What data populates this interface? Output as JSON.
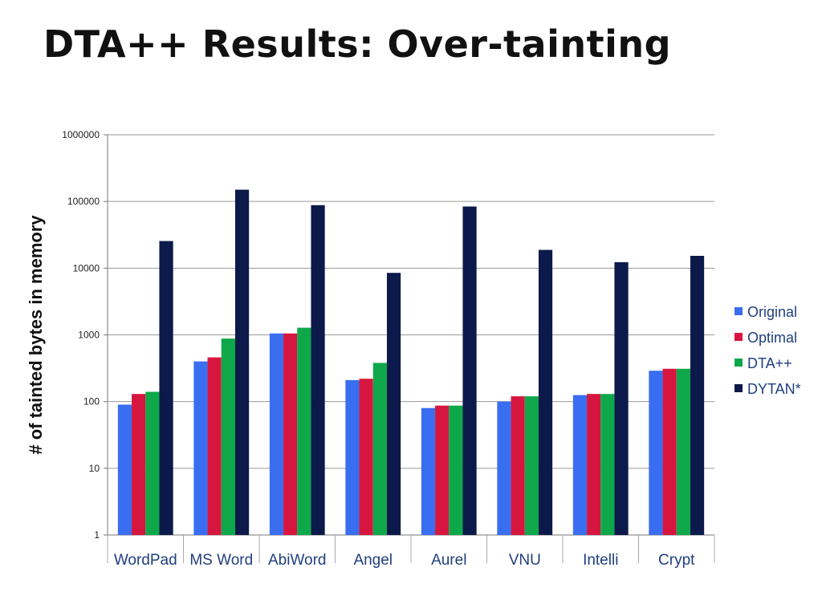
{
  "slide": {
    "title": "DTA++ Results: Over-tainting"
  },
  "chart_data": {
    "type": "bar",
    "title": "",
    "xlabel": "",
    "ylabel": "# of tainted bytes in memory",
    "yscale": "log",
    "ylim": [
      1,
      1000000
    ],
    "yticks": [
      "1",
      "10",
      "100",
      "1000",
      "10000",
      "100000",
      "1000000"
    ],
    "grid": true,
    "legend_position": "right",
    "categories": [
      "WordPad",
      "MS Word",
      "AbiWord",
      "Angel",
      "Aurel",
      "VNU",
      "Intelli",
      "Crypt"
    ],
    "series": [
      {
        "name": "Original",
        "color": "#3a6ef0",
        "values": [
          90,
          400,
          1050,
          210,
          80,
          100,
          125,
          290
        ]
      },
      {
        "name": "Optimal",
        "color": "#d7163f",
        "values": [
          130,
          460,
          1050,
          220,
          87,
          120,
          130,
          310
        ]
      },
      {
        "name": "DTA++",
        "color": "#0ea84a",
        "values": [
          140,
          880,
          1280,
          380,
          87,
          120,
          130,
          310
        ]
      },
      {
        "name": "DYTAN*",
        "color": "#0b1a4a",
        "values": [
          25500,
          150000,
          88000,
          8500,
          84000,
          18800,
          12300,
          15300
        ]
      }
    ]
  }
}
